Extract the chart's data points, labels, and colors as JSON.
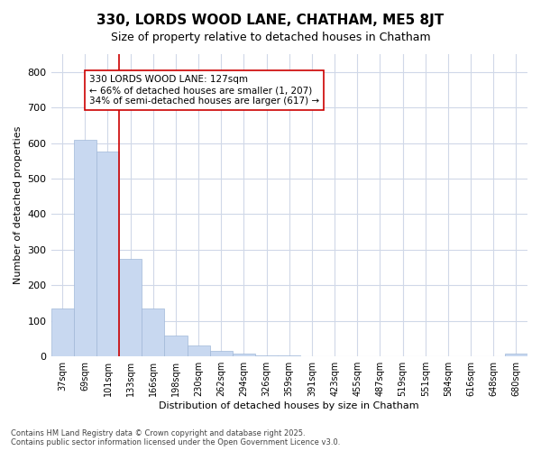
{
  "title": "330, LORDS WOOD LANE, CHATHAM, ME5 8JT",
  "subtitle": "Size of property relative to detached houses in Chatham",
  "xlabel": "Distribution of detached houses by size in Chatham",
  "ylabel": "Number of detached properties",
  "categories": [
    "37sqm",
    "69sqm",
    "101sqm",
    "133sqm",
    "166sqm",
    "198sqm",
    "230sqm",
    "262sqm",
    "294sqm",
    "326sqm",
    "359sqm",
    "391sqm",
    "423sqm",
    "455sqm",
    "487sqm",
    "519sqm",
    "551sqm",
    "584sqm",
    "616sqm",
    "648sqm",
    "680sqm"
  ],
  "values": [
    135,
    610,
    575,
    275,
    135,
    58,
    30,
    15,
    8,
    3,
    2,
    0,
    0,
    0,
    0,
    0,
    0,
    0,
    0,
    0,
    8
  ],
  "bar_color": "#c8d8f0",
  "bar_edge_color": "#a0b8d8",
  "annotation_line1": "330 LORDS WOOD LANE: 127sqm",
  "annotation_line2": "← 66% of detached houses are smaller (1, 207)",
  "annotation_line3": "34% of semi-detached houses are larger (617) →",
  "vline_x": 3.0,
  "vline_color": "#cc0000",
  "annotation_box_color": "#cc0000",
  "background_color": "#ffffff",
  "grid_color": "#d0d8e8",
  "footnote": "Contains HM Land Registry data © Crown copyright and database right 2025.\nContains public sector information licensed under the Open Government Licence v3.0.",
  "ylim": [
    0,
    850
  ],
  "yticks": [
    0,
    100,
    200,
    300,
    400,
    500,
    600,
    700,
    800
  ]
}
